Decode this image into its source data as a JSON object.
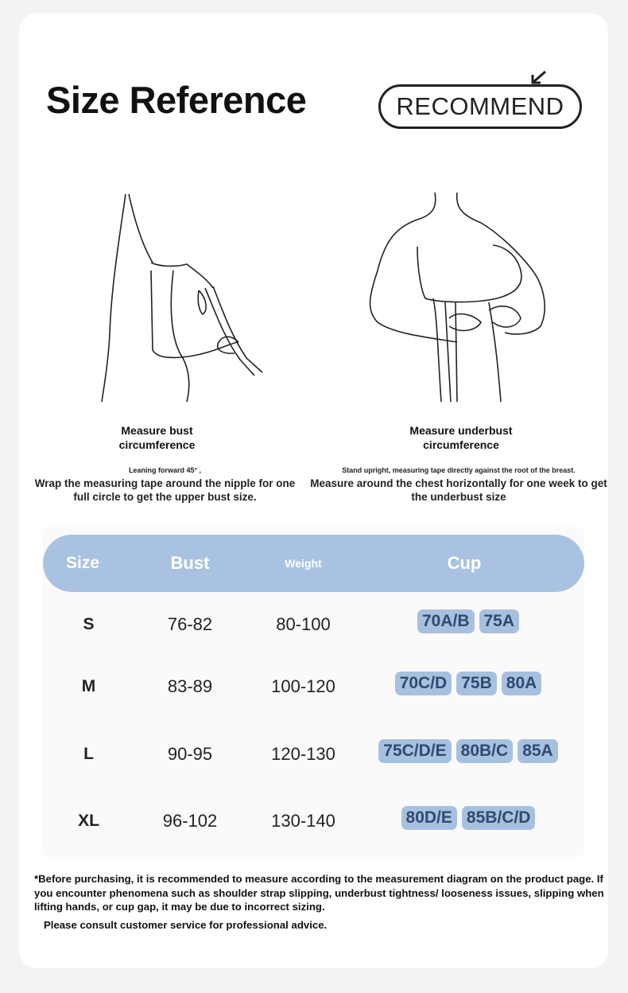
{
  "header": {
    "title": "Size Reference",
    "badge": "RECOMMEND"
  },
  "left_panel": {
    "caption": "Measure bust circumference",
    "hint": "Leaning forward 45° ,",
    "description": "Wrap the measuring tape around the nipple for one full circle to get the upper bust size."
  },
  "right_panel": {
    "caption": "Measure underbust circumference",
    "hint": "Stand upright, measuring tape directly against the root of the breast.",
    "description": "Measure around the chest horizontally for one week to get the underbust size"
  },
  "table": {
    "headers": [
      "Size",
      "Bust",
      "Weight",
      "Cup"
    ],
    "rows": [
      {
        "size": "S",
        "bust": "76-82",
        "weight": "80-100",
        "cups": [
          "70A/B",
          "75A"
        ]
      },
      {
        "size": "M",
        "bust": "83-89",
        "weight": "100-120",
        "cups": [
          "70C/D",
          "75B",
          "80A"
        ]
      },
      {
        "size": "L",
        "bust": "90-95",
        "weight": "120-130",
        "cups": [
          "75C/D/E",
          "80B/C",
          "85A"
        ]
      },
      {
        "size": "XL",
        "bust": "96-102",
        "weight": "130-140",
        "cups": [
          "80D/E",
          "85B/C/D"
        ]
      }
    ]
  },
  "footer": {
    "note": "*Before purchasing, it is recommended to measure according to the measurement diagram on the product page. If you encounter phenomena such as shoulder strap slipping, underbust tightness/ looseness issues, slipping when lifting hands, or cup gap, it may be due to incorrect sizing.",
    "advice": "Please consult customer service for professional advice."
  },
  "colors": {
    "header_bar": "#a9c2e2",
    "cup_pill": "#a8c0e0",
    "cup_text": "#2f4b70",
    "background": "#f4f2f2"
  }
}
